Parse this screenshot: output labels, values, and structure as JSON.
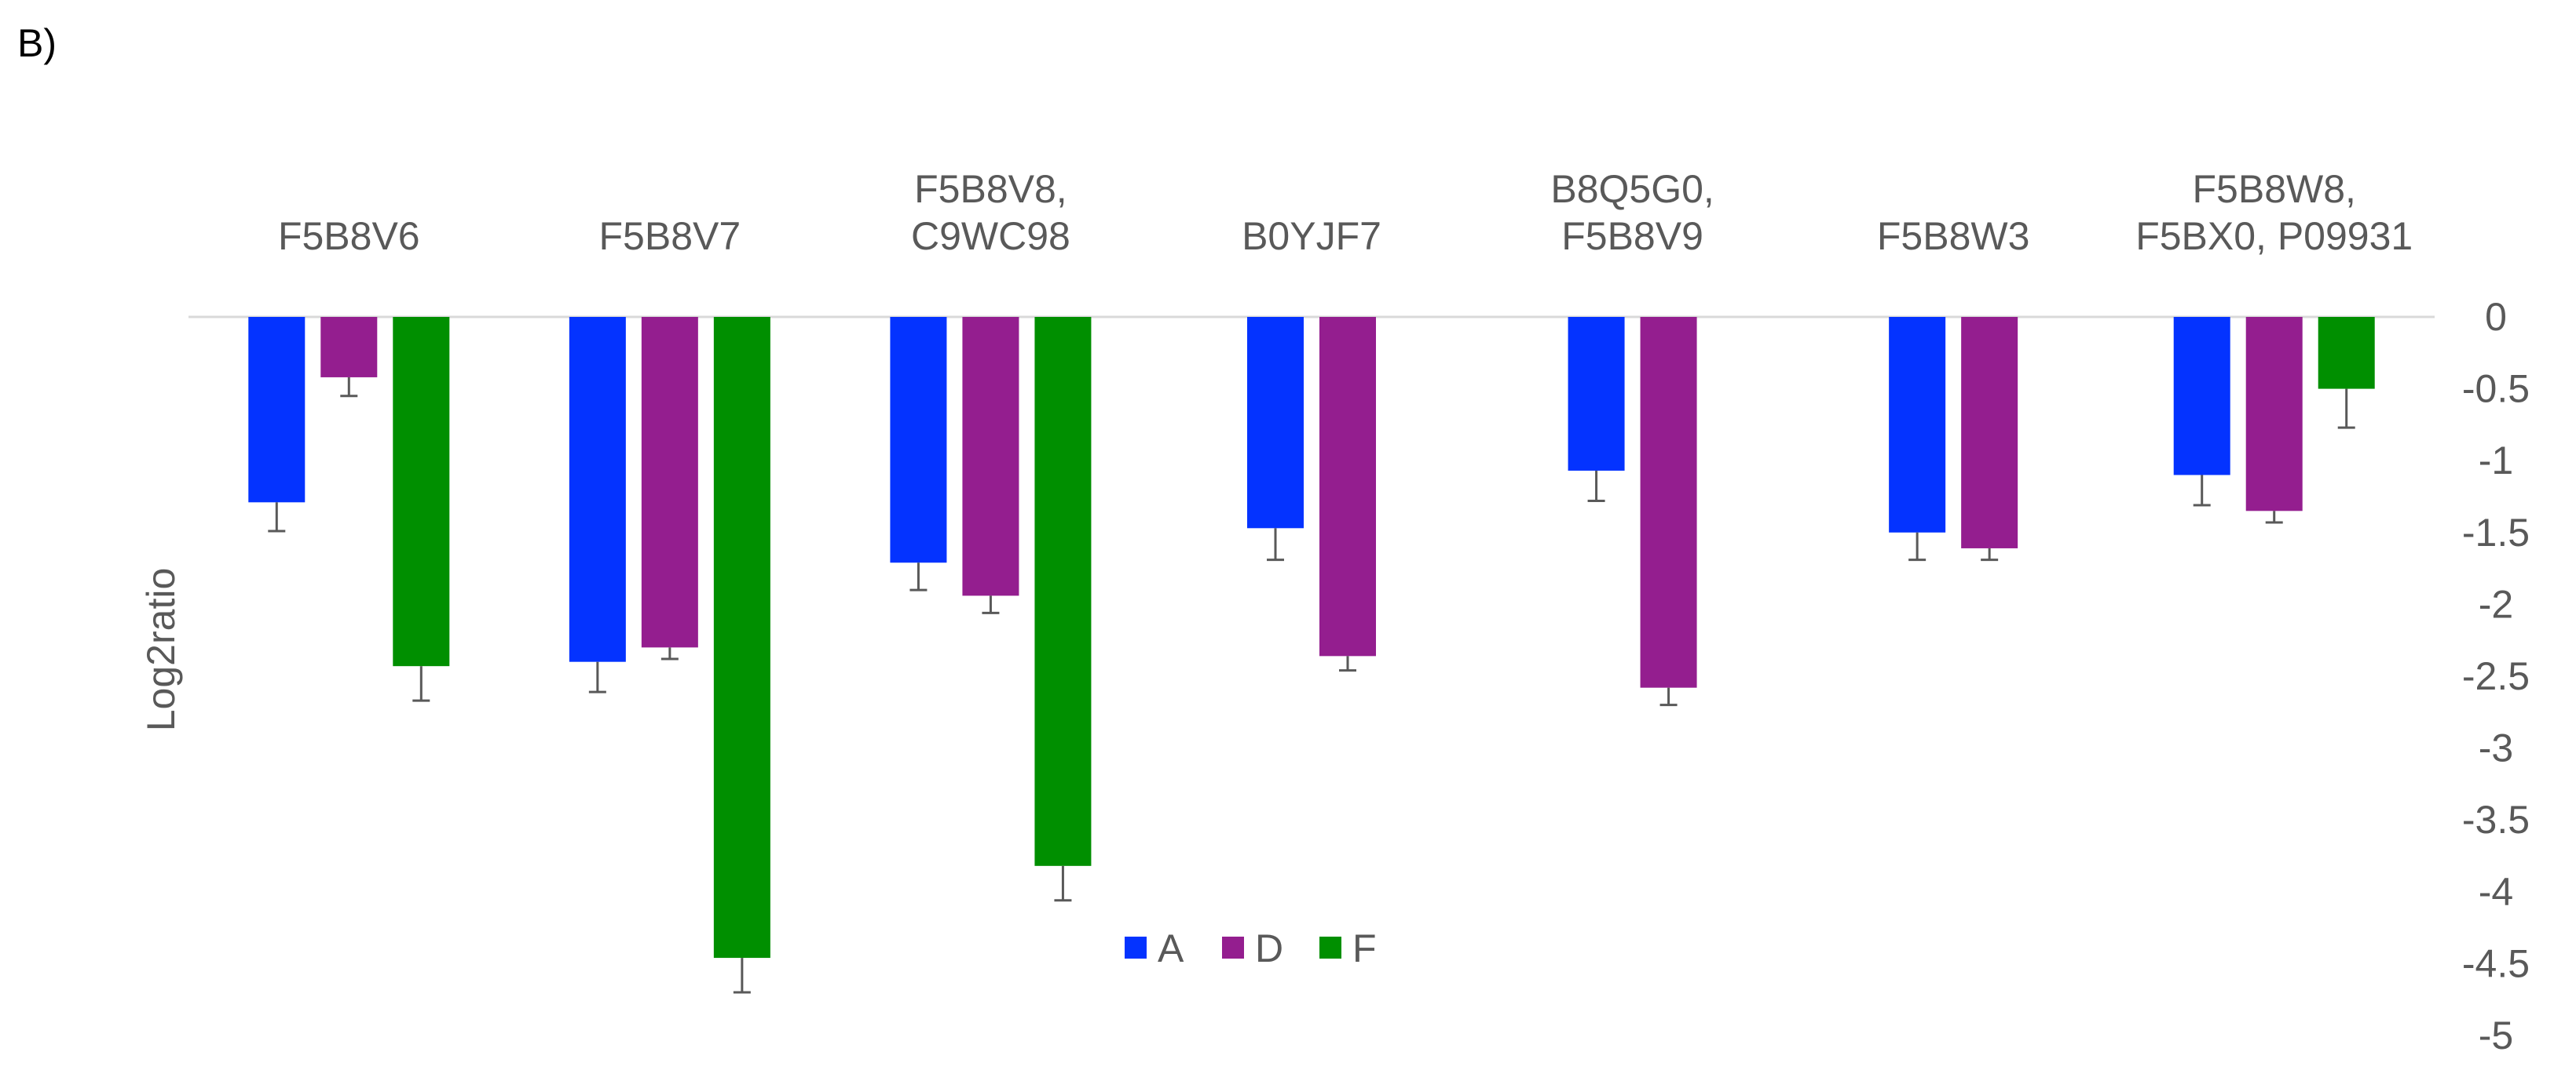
{
  "panel_label": "B)",
  "chart_data": {
    "type": "bar",
    "title": "",
    "xlabel": "",
    "ylabel": "Log2ratio",
    "ylim": [
      -5,
      0
    ],
    "yticks": [
      0,
      -0.5,
      -1,
      -1.5,
      -2,
      -2.5,
      -3,
      -3.5,
      -4,
      -4.5,
      -5
    ],
    "ytick_labels": [
      "0",
      "-0.5",
      "-1",
      "-1.5",
      "-2",
      "-2.5",
      "-3",
      "-3.5",
      "-4",
      "-4.5",
      "-5"
    ],
    "grid": false,
    "y_axis_side": "right",
    "category_labels_position": "top",
    "legend_position": "bottom-center",
    "categories": [
      [
        "F5B8V6"
      ],
      [
        "F5B8V7"
      ],
      [
        "F5B8V8,",
        "C9WC98"
      ],
      [
        "B0YJF7"
      ],
      [
        "B8Q5G0,",
        "F5B8V9"
      ],
      [
        "F5B8W3"
      ],
      [
        "F5B8W8,",
        "F5BX0, P09931"
      ]
    ],
    "series": [
      {
        "name": "A",
        "color": "#0433ff",
        "values": [
          -1.29,
          -2.4,
          -1.71,
          -1.47,
          -1.07,
          -1.5,
          -1.1
        ],
        "errors": [
          0.2,
          0.21,
          0.19,
          0.22,
          0.21,
          0.19,
          0.21
        ]
      },
      {
        "name": "D",
        "color": "#941e8f",
        "values": [
          -0.42,
          -2.3,
          -1.94,
          -2.36,
          -2.58,
          -1.61,
          -1.35
        ],
        "errors": [
          0.13,
          0.08,
          0.12,
          0.1,
          0.12,
          0.08,
          0.08
        ]
      },
      {
        "name": "F",
        "color": "#008f00",
        "values": [
          -2.43,
          -4.46,
          -3.82,
          null,
          null,
          null,
          -0.5
        ],
        "errors": [
          0.24,
          0.24,
          0.24,
          null,
          null,
          null,
          0.27
        ]
      }
    ]
  }
}
